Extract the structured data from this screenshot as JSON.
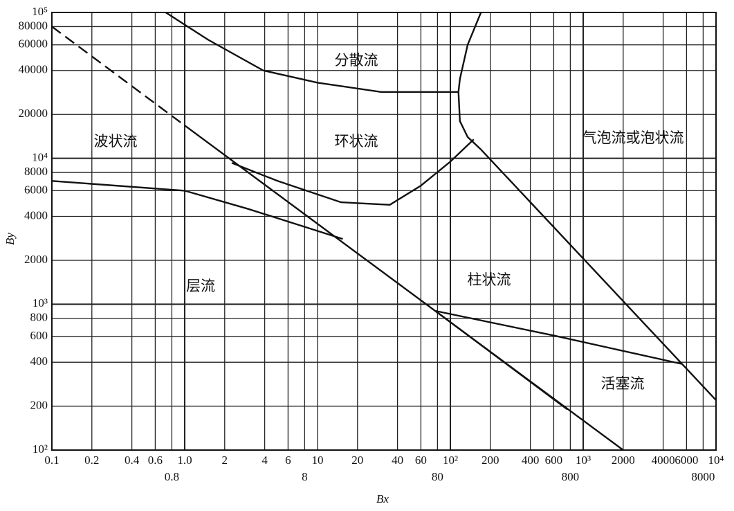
{
  "chart_data": {
    "type": "line",
    "x_label": "Bx",
    "y_label": "By",
    "log_x": true,
    "log_y": true,
    "grid": true,
    "xlim": [
      0.1,
      10000
    ],
    "ylim": [
      100,
      100000
    ],
    "xticks": [
      0.1,
      0.2,
      0.4,
      0.6,
      0.8,
      {
        "value": 1,
        "label": "1.0"
      },
      2,
      4,
      6,
      8,
      10,
      20,
      40,
      60,
      80,
      {
        "value": 100,
        "label": "10²"
      },
      200,
      400,
      600,
      800,
      {
        "value": 1000,
        "label": "10³"
      },
      2000,
      4000,
      6000,
      8000,
      {
        "value": 10000,
        "label": "10⁴"
      }
    ],
    "yticks": [
      {
        "value": 100,
        "label": "10²"
      },
      200,
      400,
      600,
      800,
      {
        "value": 1000,
        "label": "10³"
      },
      2000,
      4000,
      6000,
      8000,
      {
        "value": 10000,
        "label": "10⁴"
      },
      20000,
      40000,
      60000,
      80000,
      {
        "value": 100000,
        "label": "10⁵"
      }
    ],
    "annotations": [
      "分散流",
      "环状流",
      "波状流",
      "气泡流或泡状流",
      "柱状流",
      "层流",
      "活塞流"
    ],
    "series": [
      {
        "color": "#111111",
        "style": "dashed",
        "x": [
          0.1,
          1.0
        ],
        "values": [
          80000,
          16800
        ]
      },
      {
        "color": "#111111",
        "style": "solid",
        "x": [
          1.0,
          2000
        ],
        "values": [
          16800,
          100
        ]
      },
      {
        "color": "#111111",
        "style": "solid",
        "x": [
          0.72,
          1.5,
          3.9,
          10,
          30,
          115
        ],
        "values": [
          100000,
          65000,
          40000,
          33000,
          28500,
          28500
        ]
      },
      {
        "color": "#111111",
        "style": "solid",
        "x": [
          170,
          135,
          118,
          115,
          118,
          135,
          170
        ],
        "values": [
          100000,
          60000,
          35000,
          28500,
          18000,
          14000,
          11500
        ]
      },
      {
        "color": "#111111",
        "style": "solid",
        "x": [
          170,
          10000
        ],
        "values": [
          11500,
          220
        ]
      },
      {
        "color": "#111111",
        "style": "solid",
        "x": [
          2.26,
          5,
          15,
          35,
          60,
          100,
          150
        ],
        "values": [
          9300,
          7000,
          5000,
          4800,
          6500,
          9500,
          13500
        ]
      },
      {
        "color": "#111111",
        "style": "solid",
        "x": [
          0.1,
          1.0,
          3,
          15.5
        ],
        "values": [
          7000,
          6000,
          4500,
          2800
        ]
      },
      {
        "color": "#111111",
        "style": "solid",
        "x": [
          77,
          600,
          5500
        ],
        "values": [
          900,
          610,
          390
        ]
      },
      {
        "color": "#111111",
        "style": "solid",
        "x": [
          77,
          760
        ],
        "values": [
          900,
          190
        ]
      }
    ]
  }
}
